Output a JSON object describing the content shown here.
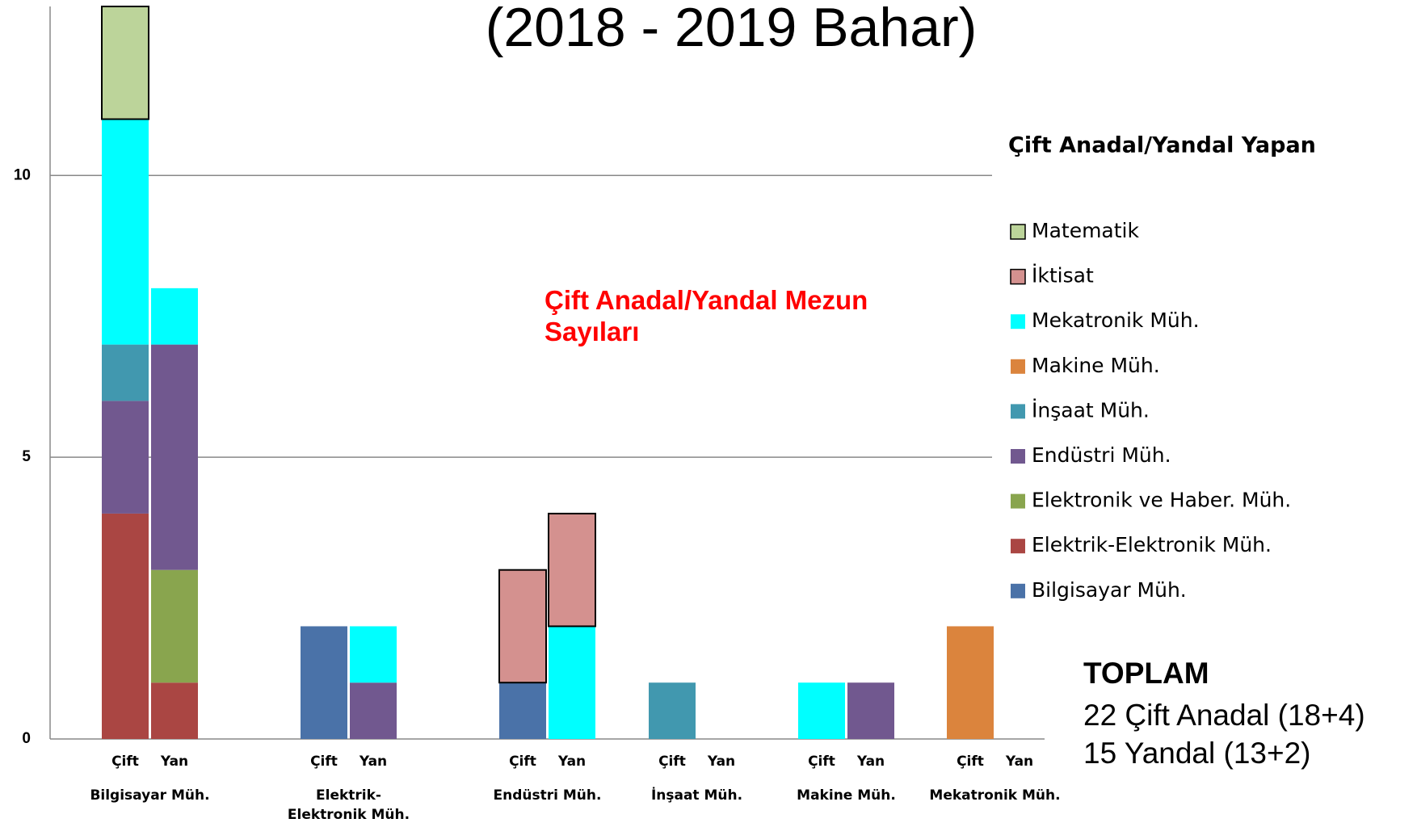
{
  "chart_data": {
    "type": "stacked_bar",
    "title": "(2018 - 2019 Bahar)",
    "annotation": "Çift Anadal/Yandal Mezun Sayıları",
    "legend_title": "Çift Anadal/Yandal Yapan",
    "totals": {
      "heading": "TOPLAM",
      "lines": [
        "22 Çift Anadal (18+4)",
        "15 Yandal (13+2)"
      ]
    },
    "groups": [
      "Bilgisayar Müh.",
      "Elektrik- Elektronik Müh.",
      "Endüstri Müh.",
      "İnşaat Müh.",
      "Makine Müh.",
      "Mekatronik Müh."
    ],
    "categories": [
      "Çift",
      "Yan",
      "Çift",
      "Yan",
      "Çift",
      "Yan",
      "Çift",
      "Yan",
      "Çift",
      "Yan",
      "Çift",
      "Yan"
    ],
    "series": [
      {
        "name": "Bilgisayar Müh.",
        "color": "#4a72a8",
        "values": [
          0,
          0,
          2,
          0,
          1,
          0,
          0,
          0,
          0,
          0,
          0,
          0
        ]
      },
      {
        "name": "Elektrik-Elektronik Müh.",
        "color": "#aa4643",
        "values": [
          4,
          1,
          0,
          0,
          0,
          0,
          0,
          0,
          0,
          0,
          0,
          0
        ]
      },
      {
        "name": "Elektronik ve Haber. Müh.",
        "color": "#89a54e",
        "values": [
          0,
          2,
          0,
          0,
          0,
          0,
          0,
          0,
          0,
          0,
          0,
          0
        ]
      },
      {
        "name": "Endüstri Müh.",
        "color": "#71588f",
        "values": [
          2,
          4,
          0,
          1,
          0,
          0,
          0,
          0,
          0,
          1,
          0,
          0
        ]
      },
      {
        "name": "İnşaat Müh.",
        "color": "#4198af",
        "values": [
          1,
          0,
          0,
          0,
          0,
          0,
          1,
          0,
          0,
          0,
          0,
          0
        ]
      },
      {
        "name": "Makine Müh.",
        "color": "#db843d",
        "values": [
          0,
          0,
          0,
          0,
          0,
          0,
          0,
          0,
          0,
          0,
          2,
          0
        ]
      },
      {
        "name": "Mekatronik Müh.",
        "color": "#00ffff",
        "values": [
          4,
          1,
          0,
          1,
          0,
          2,
          0,
          0,
          1,
          0,
          0,
          0
        ]
      },
      {
        "name": "İktisat",
        "color": "#d4918f",
        "outline": "#000000",
        "values": [
          0,
          0,
          0,
          0,
          2,
          2,
          0,
          0,
          0,
          0,
          0,
          0
        ]
      },
      {
        "name": "Matematik",
        "color": "#bcd49a",
        "outline": "#000000",
        "values": [
          2,
          0,
          0,
          0,
          0,
          0,
          0,
          0,
          0,
          0,
          0,
          0
        ]
      }
    ],
    "ylim": [
      0,
      13
    ],
    "yticks": [
      0,
      5,
      10
    ],
    "grid": true
  }
}
